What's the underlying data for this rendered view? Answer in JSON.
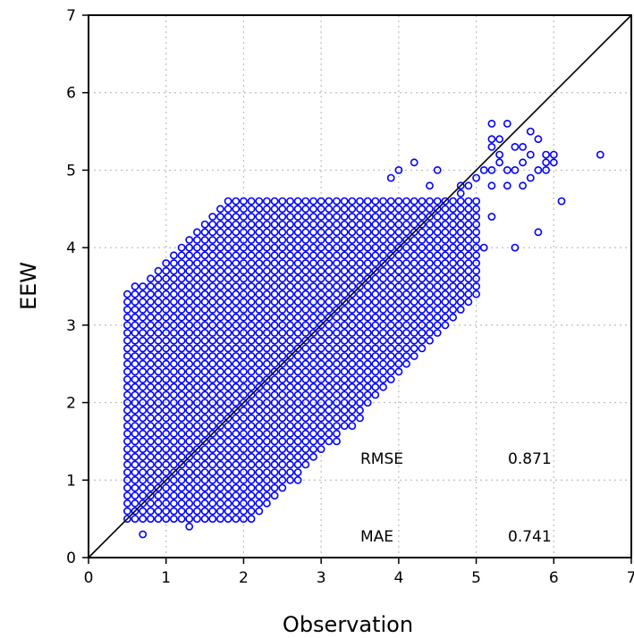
{
  "chart_data": {
    "type": "scatter",
    "xlabel": "Observation",
    "ylabel": "EEW",
    "xlim": [
      0,
      7
    ],
    "ylim": [
      0,
      7
    ],
    "xticks": [
      "0",
      "1",
      "2",
      "3",
      "4",
      "5",
      "6",
      "7"
    ],
    "yticks": [
      "0",
      "1",
      "2",
      "3",
      "4",
      "5",
      "6",
      "7"
    ],
    "grid": true,
    "grid_style": "dotted",
    "reference_line": {
      "from": [
        0,
        0
      ],
      "to": [
        7,
        7
      ],
      "color": "#000000"
    },
    "marker_color": "#0000ff",
    "annotations": [
      {
        "label": "RMSE",
        "value": "0.871"
      },
      {
        "label": "MAE",
        "value": "0.741"
      }
    ],
    "cluster": {
      "x_range": [
        0.5,
        5.0
      ],
      "band_below_line": 1.6,
      "band_above_line": 2.8,
      "y_floor": 0.5,
      "y_cap": 4.6,
      "grid_step": 0.1
    },
    "outliers": [
      [
        0.7,
        0.3
      ],
      [
        1.3,
        0.4
      ],
      [
        1.2,
        0.5
      ],
      [
        0.6,
        0.5
      ],
      [
        1.5,
        0.6
      ],
      [
        2.0,
        0.7
      ],
      [
        2.2,
        0.9
      ],
      [
        2.7,
        1.0
      ],
      [
        3.2,
        1.5
      ],
      [
        3.5,
        1.8
      ],
      [
        3.4,
        1.7
      ],
      [
        3.3,
        1.9
      ],
      [
        3.6,
        2.0
      ],
      [
        3.8,
        2.2
      ],
      [
        3.9,
        2.3
      ],
      [
        4.0,
        2.4
      ],
      [
        4.2,
        2.7
      ],
      [
        4.0,
        2.6
      ],
      [
        4.3,
        2.9
      ],
      [
        4.2,
        3.1
      ],
      [
        4.4,
        3.2
      ],
      [
        4.6,
        3.3
      ],
      [
        4.7,
        3.4
      ],
      [
        4.8,
        3.6
      ],
      [
        4.9,
        3.5
      ],
      [
        5.0,
        3.7
      ],
      [
        5.0,
        3.9
      ],
      [
        5.1,
        4.0
      ],
      [
        5.0,
        4.2
      ],
      [
        4.9,
        4.4
      ],
      [
        5.0,
        4.5
      ],
      [
        4.8,
        4.7
      ],
      [
        4.9,
        4.8
      ],
      [
        5.0,
        4.9
      ],
      [
        5.1,
        5.0
      ],
      [
        5.2,
        5.0
      ],
      [
        5.3,
        5.1
      ],
      [
        5.4,
        5.0
      ],
      [
        5.5,
        5.0
      ],
      [
        5.6,
        5.1
      ],
      [
        5.2,
        5.4
      ],
      [
        5.3,
        5.4
      ],
      [
        5.2,
        5.3
      ],
      [
        5.2,
        5.6
      ],
      [
        5.4,
        5.6
      ],
      [
        5.3,
        5.2
      ],
      [
        4.5,
        5.0
      ],
      [
        4.8,
        4.8
      ],
      [
        5.5,
        5.3
      ],
      [
        5.6,
        5.3
      ],
      [
        5.7,
        5.5
      ],
      [
        5.7,
        5.2
      ],
      [
        5.8,
        5.4
      ],
      [
        5.9,
        5.1
      ],
      [
        5.8,
        5.0
      ],
      [
        5.8,
        4.2
      ],
      [
        5.6,
        4.8
      ],
      [
        5.4,
        4.8
      ],
      [
        5.2,
        4.8
      ],
      [
        5.0,
        4.6
      ],
      [
        5.2,
        4.4
      ],
      [
        5.5,
        4.0
      ],
      [
        5.7,
        4.9
      ],
      [
        5.9,
        5.0
      ],
      [
        6.0,
        5.1
      ],
      [
        6.0,
        5.2
      ],
      [
        5.9,
        5.2
      ],
      [
        6.1,
        4.6
      ],
      [
        6.6,
        5.2
      ],
      [
        4.2,
        5.1
      ],
      [
        4.0,
        5.0
      ],
      [
        3.9,
        4.9
      ],
      [
        4.4,
        4.8
      ],
      [
        2.0,
        4.4
      ],
      [
        2.2,
        4.5
      ],
      [
        2.6,
        4.4
      ],
      [
        2.7,
        4.5
      ],
      [
        2.8,
        4.4
      ],
      [
        3.0,
        4.4
      ],
      [
        1.3,
        4.0
      ],
      [
        1.2,
        3.9
      ],
      [
        1.6,
        4.0
      ],
      [
        1.8,
        4.0
      ],
      [
        1.9,
        4.0
      ],
      [
        0.6,
        3.5
      ],
      [
        0.5,
        3.4
      ],
      [
        0.5,
        3.2
      ],
      [
        0.6,
        3.1
      ],
      [
        1.4,
        3.8
      ],
      [
        1.5,
        3.7
      ]
    ]
  }
}
